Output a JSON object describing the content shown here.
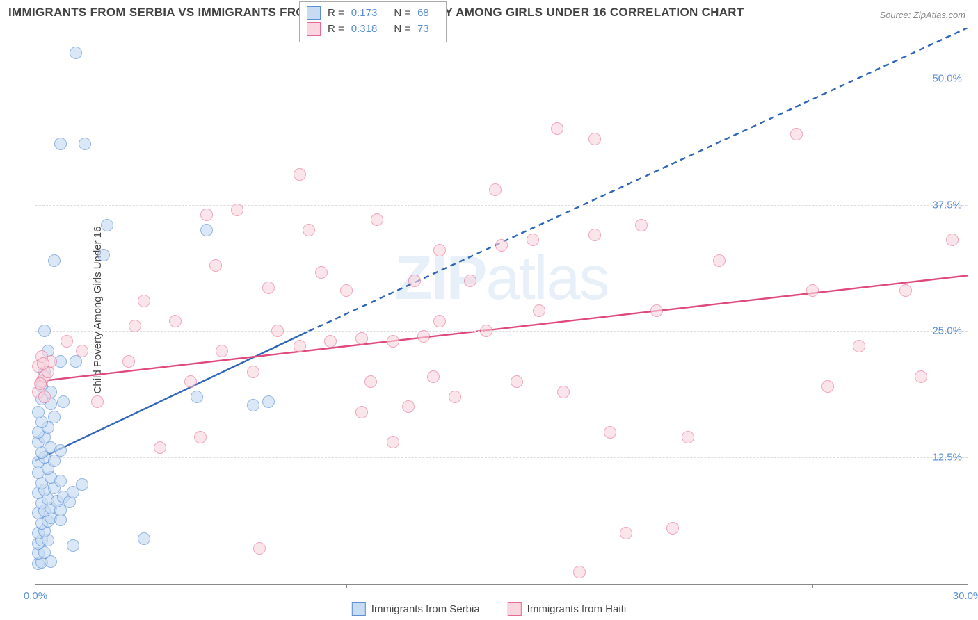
{
  "title": "IMMIGRANTS FROM SERBIA VS IMMIGRANTS FROM HAITI CHILD POVERTY AMONG GIRLS UNDER 16 CORRELATION CHART",
  "source": "Source: ZipAtlas.com",
  "watermark_a": "ZIP",
  "watermark_b": "atlas",
  "y_axis_label": "Child Poverty Among Girls Under 16",
  "chart": {
    "type": "scatter",
    "xlim": [
      0,
      30
    ],
    "ylim": [
      0,
      55
    ],
    "x_ticks": [
      0,
      30
    ],
    "x_tick_labels": [
      "0.0%",
      "30.0%"
    ],
    "x_minor_marks": [
      5,
      10,
      15,
      20,
      25
    ],
    "y_ticks": [
      12.5,
      25.0,
      37.5,
      50.0
    ],
    "y_tick_labels": [
      "12.5%",
      "25.0%",
      "37.5%",
      "50.0%"
    ],
    "background_color": "#ffffff",
    "grid_color": "#dddddd",
    "marker_radius": 8,
    "marker_border_width": 1.2,
    "series": [
      {
        "name": "Immigrants from Serbia",
        "fill_color": "#c7dbf2",
        "border_color": "#5b8fd6",
        "opacity": 0.65,
        "R": "0.173",
        "N": "68",
        "trend": {
          "solid": {
            "x1": 0,
            "y1": 12.2,
            "x2": 8.8,
            "y2": 25.0
          },
          "dashed": {
            "x1": 8.8,
            "y1": 25.0,
            "x2": 30,
            "y2": 55.0
          },
          "color": "#2f66b8",
          "width": 2.4
        },
        "points": [
          [
            0.1,
            2.0
          ],
          [
            0.2,
            2.1
          ],
          [
            0.5,
            2.2
          ],
          [
            0.1,
            3.0
          ],
          [
            0.3,
            3.1
          ],
          [
            0.1,
            4.0
          ],
          [
            0.2,
            4.3
          ],
          [
            0.4,
            4.3
          ],
          [
            1.2,
            3.8
          ],
          [
            0.1,
            5.0
          ],
          [
            0.3,
            5.2
          ],
          [
            0.2,
            6.0
          ],
          [
            0.4,
            6.2
          ],
          [
            0.5,
            6.5
          ],
          [
            0.8,
            6.3
          ],
          [
            0.1,
            7.0
          ],
          [
            0.3,
            7.2
          ],
          [
            0.5,
            7.5
          ],
          [
            0.8,
            7.3
          ],
          [
            0.2,
            8.0
          ],
          [
            0.4,
            8.4
          ],
          [
            0.7,
            8.2
          ],
          [
            0.9,
            8.6
          ],
          [
            1.1,
            8.1
          ],
          [
            0.1,
            9.0
          ],
          [
            0.3,
            9.3
          ],
          [
            0.6,
            9.5
          ],
          [
            1.2,
            9.1
          ],
          [
            0.2,
            10.0
          ],
          [
            0.5,
            10.5
          ],
          [
            0.8,
            10.2
          ],
          [
            1.5,
            9.8
          ],
          [
            0.1,
            11.0
          ],
          [
            0.4,
            11.4
          ],
          [
            0.1,
            12.0
          ],
          [
            0.3,
            12.5
          ],
          [
            0.6,
            12.2
          ],
          [
            0.2,
            13.0
          ],
          [
            0.5,
            13.5
          ],
          [
            0.8,
            13.2
          ],
          [
            0.1,
            14.0
          ],
          [
            0.3,
            14.5
          ],
          [
            0.1,
            15.0
          ],
          [
            0.4,
            15.5
          ],
          [
            0.2,
            16.0
          ],
          [
            0.6,
            16.5
          ],
          [
            0.1,
            17.0
          ],
          [
            0.5,
            17.8
          ],
          [
            0.2,
            18.3
          ],
          [
            0.9,
            18.0
          ],
          [
            7.0,
            17.7
          ],
          [
            7.5,
            18.0
          ],
          [
            0.2,
            19.5
          ],
          [
            0.5,
            19.0
          ],
          [
            0.3,
            21.0
          ],
          [
            0.8,
            22.0
          ],
          [
            0.4,
            23.0
          ],
          [
            0.3,
            25.0
          ],
          [
            5.2,
            18.5
          ],
          [
            3.5,
            4.5
          ],
          [
            0.6,
            32.0
          ],
          [
            2.2,
            32.5
          ],
          [
            2.3,
            35.5
          ],
          [
            5.5,
            35.0
          ],
          [
            0.8,
            43.5
          ],
          [
            1.6,
            43.5
          ],
          [
            1.3,
            52.5
          ],
          [
            1.3,
            22.0
          ]
        ]
      },
      {
        "name": "Immigrants from Haiti",
        "fill_color": "#f8d5df",
        "border_color": "#e76a94",
        "opacity": 0.6,
        "R": "0.318",
        "N": "73",
        "trend": {
          "solid": {
            "x1": 0,
            "y1": 20.0,
            "x2": 30,
            "y2": 30.5
          },
          "color": "#e04a7b",
          "width": 2.4
        },
        "points": [
          [
            0.1,
            19.0
          ],
          [
            0.2,
            20.0
          ],
          [
            0.3,
            20.5
          ],
          [
            0.1,
            21.5
          ],
          [
            0.4,
            21.0
          ],
          [
            0.5,
            22.0
          ],
          [
            0.2,
            22.5
          ],
          [
            0.3,
            18.5
          ],
          [
            0.15,
            19.8
          ],
          [
            0.25,
            21.8
          ],
          [
            3.2,
            25.5
          ],
          [
            3.5,
            28.0
          ],
          [
            4.0,
            13.5
          ],
          [
            5.3,
            14.5
          ],
          [
            5.5,
            36.5
          ],
          [
            5.8,
            31.5
          ],
          [
            6.5,
            37.0
          ],
          [
            7.0,
            21.0
          ],
          [
            7.5,
            29.3
          ],
          [
            7.2,
            3.5
          ],
          [
            8.5,
            40.5
          ],
          [
            8.8,
            35.0
          ],
          [
            8.5,
            23.5
          ],
          [
            9.2,
            30.8
          ],
          [
            9.5,
            24.0
          ],
          [
            10.0,
            29.0
          ],
          [
            10.5,
            17.0
          ],
          [
            10.5,
            24.3
          ],
          [
            10.8,
            20.0
          ],
          [
            11.0,
            36.0
          ],
          [
            11.5,
            24.0
          ],
          [
            12.0,
            17.5
          ],
          [
            12.2,
            30.0
          ],
          [
            12.5,
            24.5
          ],
          [
            13.0,
            26.0
          ],
          [
            13.5,
            18.5
          ],
          [
            14.0,
            30.0
          ],
          [
            14.5,
            25.0
          ],
          [
            14.8,
            39.0
          ],
          [
            15.0,
            33.5
          ],
          [
            15.5,
            20.0
          ],
          [
            16.0,
            34.0
          ],
          [
            16.2,
            27.0
          ],
          [
            16.8,
            45.0
          ],
          [
            17.0,
            19.0
          ],
          [
            17.5,
            1.2
          ],
          [
            18.0,
            34.5
          ],
          [
            18.0,
            44.0
          ],
          [
            18.5,
            15.0
          ],
          [
            19.5,
            35.5
          ],
          [
            20.0,
            27.0
          ],
          [
            20.5,
            5.5
          ],
          [
            21.0,
            14.5
          ],
          [
            22.0,
            32.0
          ],
          [
            24.5,
            44.5
          ],
          [
            25.0,
            29.0
          ],
          [
            25.5,
            19.5
          ],
          [
            26.5,
            23.5
          ],
          [
            28.0,
            29.0
          ],
          [
            28.5,
            20.5
          ],
          [
            29.5,
            34.0
          ],
          [
            5.0,
            20.0
          ],
          [
            3.0,
            22.0
          ],
          [
            2.0,
            18.0
          ],
          [
            1.5,
            23.0
          ],
          [
            1.0,
            24.0
          ],
          [
            11.5,
            14.0
          ],
          [
            13.0,
            33.0
          ],
          [
            7.8,
            25.0
          ],
          [
            12.8,
            20.5
          ],
          [
            4.5,
            26.0
          ],
          [
            6.0,
            23.0
          ],
          [
            19.0,
            5.0
          ]
        ]
      }
    ]
  },
  "stats_legend": {
    "r_label": "R =",
    "n_label": "N ="
  },
  "bottom_legend": {
    "series_a": "Immigrants from Serbia",
    "series_b": "Immigrants from Haiti"
  }
}
